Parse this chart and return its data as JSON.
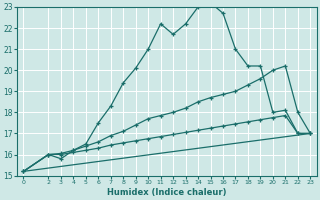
{
  "xlabel": "Humidex (Indice chaleur)",
  "xlim": [
    -0.5,
    23.5
  ],
  "ylim": [
    15,
    23
  ],
  "xticks": [
    0,
    2,
    3,
    4,
    5,
    6,
    7,
    8,
    9,
    10,
    11,
    12,
    13,
    14,
    15,
    16,
    17,
    18,
    19,
    20,
    21,
    22,
    23
  ],
  "yticks": [
    15,
    16,
    17,
    18,
    19,
    20,
    21,
    22,
    23
  ],
  "bg_color": "#cfe8e6",
  "line_color": "#1a6e6a",
  "grid_color": "#b0d8d5",
  "line1_x": [
    0,
    2,
    3,
    4,
    5,
    6,
    7,
    8,
    9,
    10,
    11,
    12,
    13,
    14,
    15,
    16,
    17,
    18,
    19,
    20,
    21,
    22,
    23
  ],
  "line1_y": [
    15.2,
    16.0,
    15.8,
    16.2,
    16.5,
    17.5,
    18.3,
    19.4,
    20.1,
    21.0,
    22.2,
    21.7,
    22.2,
    23.0,
    23.2,
    22.7,
    21.0,
    20.2,
    20.2,
    18.0,
    18.1,
    17.0,
    17.0
  ],
  "line2_x": [
    0,
    2,
    3,
    4,
    5,
    6,
    7,
    8,
    9,
    10,
    11,
    12,
    13,
    14,
    15,
    16,
    17,
    18,
    19,
    20,
    21,
    22,
    23
  ],
  "line2_y": [
    15.2,
    16.0,
    16.05,
    16.2,
    16.4,
    16.6,
    16.9,
    17.1,
    17.4,
    17.7,
    17.85,
    18.0,
    18.2,
    18.5,
    18.7,
    18.85,
    19.0,
    19.3,
    19.6,
    20.0,
    20.2,
    18.0,
    17.0
  ],
  "line3_x": [
    0,
    2,
    3,
    4,
    5,
    6,
    7,
    8,
    9,
    10,
    11,
    12,
    13,
    14,
    15,
    16,
    17,
    18,
    19,
    20,
    21,
    22,
    23
  ],
  "line3_y": [
    15.2,
    16.0,
    16.0,
    16.1,
    16.2,
    16.3,
    16.45,
    16.55,
    16.65,
    16.75,
    16.85,
    16.95,
    17.05,
    17.15,
    17.25,
    17.35,
    17.45,
    17.55,
    17.65,
    17.75,
    17.85,
    17.0,
    17.0
  ],
  "line4_x": [
    0,
    23
  ],
  "line4_y": [
    15.2,
    17.0
  ]
}
